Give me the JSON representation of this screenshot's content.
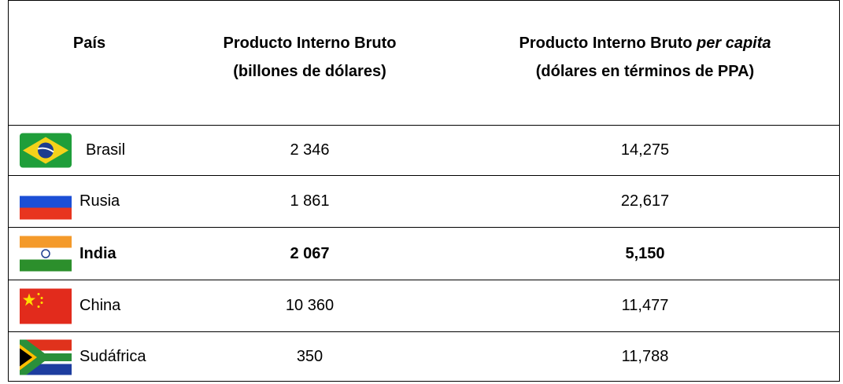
{
  "table": {
    "header": {
      "country": "País",
      "gdp": [
        "Producto Interno Bruto",
        "(billones de dólares)"
      ],
      "per_capita": {
        "text": "Producto Interno Bruto",
        "italic": "per capita",
        "unit": "(dólares en términos de PPA)"
      }
    },
    "rows": [
      {
        "country": "Brasil",
        "gdp": "2 346",
        "per_capita": "14,275",
        "bold": false
      },
      {
        "country": "Rusia",
        "gdp": "1 861",
        "per_capita": "22,617",
        "bold": false
      },
      {
        "country": "India",
        "gdp": "2 067",
        "per_capita": "5,150",
        "bold": true
      },
      {
        "country": "China",
        "gdp": "10 360",
        "per_capita": "11,477",
        "bold": false
      },
      {
        "country": "Sudáfrica",
        "gdp": "350",
        "per_capita": "11,788",
        "bold": false
      }
    ]
  }
}
